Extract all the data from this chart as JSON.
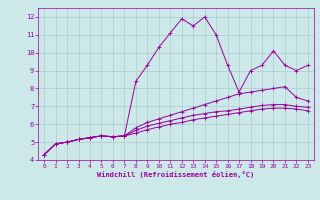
{
  "title": "",
  "xlabel": "Windchill (Refroidissement éolien,°C)",
  "ylabel": "",
  "xlim": [
    -0.5,
    23.5
  ],
  "ylim": [
    4,
    12.5
  ],
  "xticks": [
    0,
    1,
    2,
    3,
    4,
    5,
    6,
    7,
    8,
    9,
    10,
    11,
    12,
    13,
    14,
    15,
    16,
    17,
    18,
    19,
    20,
    21,
    22,
    23
  ],
  "yticks": [
    4,
    5,
    6,
    7,
    8,
    9,
    10,
    11,
    12
  ],
  "background_color": "#cce8e8",
  "grid_color": "#aacccc",
  "line_color": "#990099",
  "line1_x": [
    0,
    1,
    2,
    3,
    4,
    5,
    6,
    7,
    8,
    9,
    10,
    11,
    12,
    13,
    14,
    15,
    16,
    17,
    18,
    19,
    20,
    21,
    22,
    23
  ],
  "line1_y": [
    4.3,
    4.9,
    5.0,
    5.15,
    5.25,
    5.35,
    5.3,
    5.35,
    8.4,
    9.3,
    10.3,
    11.1,
    11.9,
    11.5,
    12.0,
    11.0,
    9.3,
    7.8,
    9.0,
    9.3,
    10.1,
    9.3,
    9.0,
    9.3
  ],
  "line2_x": [
    0,
    1,
    2,
    3,
    4,
    5,
    6,
    7,
    8,
    9,
    10,
    11,
    12,
    13,
    14,
    15,
    16,
    17,
    18,
    19,
    20,
    21,
    22,
    23
  ],
  "line2_y": [
    4.3,
    4.9,
    5.0,
    5.15,
    5.25,
    5.35,
    5.3,
    5.35,
    5.8,
    6.1,
    6.3,
    6.5,
    6.7,
    6.9,
    7.1,
    7.3,
    7.5,
    7.7,
    7.8,
    7.9,
    8.0,
    8.1,
    7.5,
    7.3
  ],
  "line3_x": [
    0,
    1,
    2,
    3,
    4,
    5,
    6,
    7,
    8,
    9,
    10,
    11,
    12,
    13,
    14,
    15,
    16,
    17,
    18,
    19,
    20,
    21,
    22,
    23
  ],
  "line3_y": [
    4.3,
    4.9,
    5.0,
    5.15,
    5.25,
    5.35,
    5.3,
    5.35,
    5.65,
    5.9,
    6.05,
    6.2,
    6.35,
    6.5,
    6.6,
    6.7,
    6.75,
    6.85,
    6.95,
    7.05,
    7.1,
    7.1,
    7.0,
    6.95
  ],
  "line4_x": [
    0,
    1,
    2,
    3,
    4,
    5,
    6,
    7,
    8,
    9,
    10,
    11,
    12,
    13,
    14,
    15,
    16,
    17,
    18,
    19,
    20,
    21,
    22,
    23
  ],
  "line4_y": [
    4.3,
    4.9,
    5.0,
    5.15,
    5.25,
    5.35,
    5.3,
    5.35,
    5.5,
    5.7,
    5.85,
    6.0,
    6.1,
    6.25,
    6.35,
    6.45,
    6.55,
    6.65,
    6.75,
    6.85,
    6.9,
    6.9,
    6.85,
    6.75
  ]
}
